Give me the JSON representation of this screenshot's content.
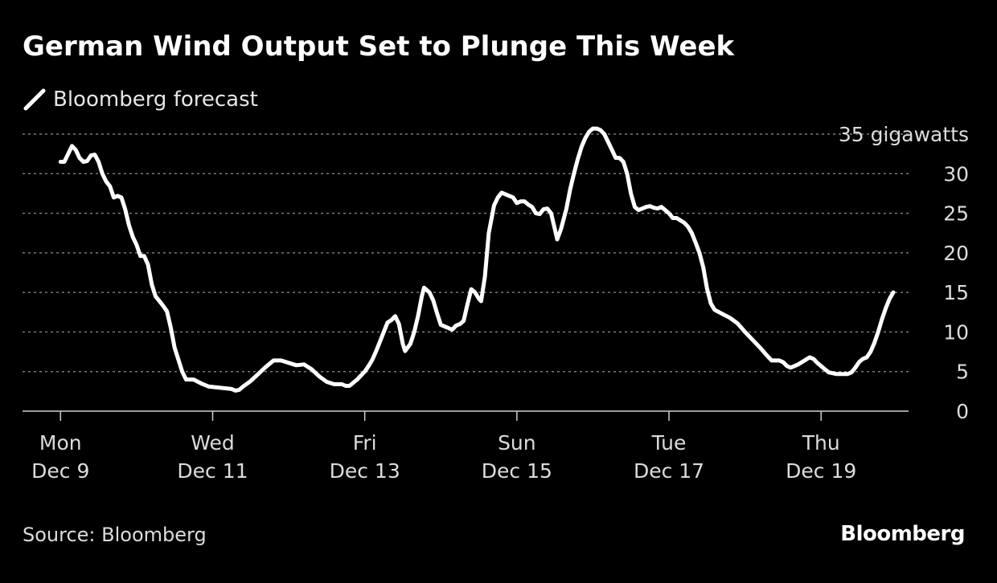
{
  "chart_data": {
    "type": "line",
    "title": "German Wind Output Set to Plunge This Week",
    "legend": [
      "Bloomberg forecast"
    ],
    "ylabel": "gigawatts",
    "ylim": [
      0,
      35
    ],
    "yticks": [
      0,
      5,
      10,
      15,
      20,
      25,
      30,
      35
    ],
    "ytick_labels": [
      "0",
      "5",
      "10",
      "15",
      "20",
      "25",
      "30",
      "35 gigawatts"
    ],
    "xlim": [
      -0.5,
      11.15
    ],
    "xticks": [
      {
        "x": 0,
        "day": "Mon",
        "date": "Dec 9"
      },
      {
        "x": 2,
        "day": "Wed",
        "date": "Dec 11"
      },
      {
        "x": 4,
        "day": "Fri",
        "date": "Dec 13"
      },
      {
        "x": 6,
        "day": "Sun",
        "date": "Dec 15"
      },
      {
        "x": 8,
        "day": "Tue",
        "date": "Dec 17"
      },
      {
        "x": 10,
        "day": "Thu",
        "date": "Dec 19"
      }
    ],
    "series": [
      {
        "name": "Bloomberg forecast",
        "color": "#ffffff",
        "points": [
          [
            0.0,
            31.5
          ],
          [
            0.05,
            31.5
          ],
          [
            0.1,
            32.5
          ],
          [
            0.15,
            33.5
          ],
          [
            0.2,
            33.0
          ],
          [
            0.25,
            32.0
          ],
          [
            0.3,
            31.5
          ],
          [
            0.35,
            31.6
          ],
          [
            0.4,
            32.3
          ],
          [
            0.45,
            32.4
          ],
          [
            0.5,
            31.5
          ],
          [
            0.55,
            30.0
          ],
          [
            0.6,
            29.0
          ],
          [
            0.65,
            28.4
          ],
          [
            0.7,
            27.0
          ],
          [
            0.75,
            27.2
          ],
          [
            0.8,
            27.0
          ],
          [
            0.85,
            25.5
          ],
          [
            0.9,
            23.5
          ],
          [
            0.95,
            22.0
          ],
          [
            1.0,
            21.0
          ],
          [
            1.05,
            19.6
          ],
          [
            1.1,
            19.6
          ],
          [
            1.15,
            18.5
          ],
          [
            1.2,
            16.0
          ],
          [
            1.25,
            14.5
          ],
          [
            1.3,
            13.9
          ],
          [
            1.35,
            13.3
          ],
          [
            1.4,
            12.6
          ],
          [
            1.45,
            10.5
          ],
          [
            1.5,
            8.0
          ],
          [
            1.55,
            6.5
          ],
          [
            1.6,
            5.0
          ],
          [
            1.65,
            4.0
          ],
          [
            1.75,
            4.0
          ],
          [
            1.85,
            3.5
          ],
          [
            1.95,
            3.1
          ],
          [
            2.05,
            3.0
          ],
          [
            2.15,
            2.9
          ],
          [
            2.25,
            2.8
          ],
          [
            2.3,
            2.6
          ],
          [
            2.35,
            2.7
          ],
          [
            2.4,
            3.1
          ],
          [
            2.5,
            3.8
          ],
          [
            2.6,
            4.7
          ],
          [
            2.7,
            5.6
          ],
          [
            2.8,
            6.4
          ],
          [
            2.9,
            6.4
          ],
          [
            3.0,
            6.1
          ],
          [
            3.1,
            5.8
          ],
          [
            3.2,
            5.9
          ],
          [
            3.3,
            5.3
          ],
          [
            3.4,
            4.4
          ],
          [
            3.5,
            3.7
          ],
          [
            3.6,
            3.4
          ],
          [
            3.7,
            3.4
          ],
          [
            3.75,
            3.2
          ],
          [
            3.8,
            3.2
          ],
          [
            3.85,
            3.6
          ],
          [
            3.9,
            4.0
          ],
          [
            4.0,
            5.0
          ],
          [
            4.05,
            5.7
          ],
          [
            4.1,
            6.5
          ],
          [
            4.15,
            7.6
          ],
          [
            4.2,
            8.8
          ],
          [
            4.25,
            10.0
          ],
          [
            4.3,
            11.2
          ],
          [
            4.35,
            11.5
          ],
          [
            4.4,
            12.0
          ],
          [
            4.45,
            11.0
          ],
          [
            4.5,
            8.5
          ],
          [
            4.53,
            7.6
          ],
          [
            4.6,
            8.5
          ],
          [
            4.65,
            10.0
          ],
          [
            4.7,
            12.0
          ],
          [
            4.75,
            14.5
          ],
          [
            4.78,
            15.6
          ],
          [
            4.85,
            15.0
          ],
          [
            4.9,
            14.0
          ],
          [
            4.95,
            12.4
          ],
          [
            5.0,
            10.9
          ],
          [
            5.05,
            10.7
          ],
          [
            5.1,
            10.5
          ],
          [
            5.15,
            10.3
          ],
          [
            5.2,
            10.8
          ],
          [
            5.25,
            11.0
          ],
          [
            5.3,
            11.4
          ],
          [
            5.35,
            13.5
          ],
          [
            5.4,
            15.4
          ],
          [
            5.45,
            15.0
          ],
          [
            5.5,
            14.2
          ],
          [
            5.53,
            13.9
          ],
          [
            5.58,
            17.0
          ],
          [
            5.63,
            22.5
          ],
          [
            5.7,
            26.0
          ],
          [
            5.75,
            27.0
          ],
          [
            5.8,
            27.6
          ],
          [
            5.85,
            27.4
          ],
          [
            5.9,
            27.2
          ],
          [
            5.95,
            27.0
          ],
          [
            6.0,
            26.3
          ],
          [
            6.05,
            26.5
          ],
          [
            6.1,
            26.5
          ],
          [
            6.15,
            26.1
          ],
          [
            6.2,
            25.8
          ],
          [
            6.25,
            25.0
          ],
          [
            6.3,
            24.9
          ],
          [
            6.35,
            25.5
          ],
          [
            6.4,
            25.6
          ],
          [
            6.45,
            25.0
          ],
          [
            6.5,
            23.0
          ],
          [
            6.53,
            21.7
          ],
          [
            6.58,
            23.0
          ],
          [
            6.65,
            25.5
          ],
          [
            6.7,
            28.0
          ],
          [
            6.75,
            30.0
          ],
          [
            6.8,
            31.8
          ],
          [
            6.85,
            33.4
          ],
          [
            6.9,
            34.5
          ],
          [
            6.95,
            35.3
          ],
          [
            7.0,
            35.7
          ],
          [
            7.05,
            35.7
          ],
          [
            7.1,
            35.5
          ],
          [
            7.15,
            35.0
          ],
          [
            7.2,
            34.0
          ],
          [
            7.25,
            33.0
          ],
          [
            7.3,
            32.0
          ],
          [
            7.35,
            32.0
          ],
          [
            7.4,
            31.5
          ],
          [
            7.45,
            30.0
          ],
          [
            7.5,
            27.5
          ],
          [
            7.55,
            25.8
          ],
          [
            7.6,
            25.4
          ],
          [
            7.65,
            25.6
          ],
          [
            7.7,
            25.8
          ],
          [
            7.75,
            25.9
          ],
          [
            7.8,
            25.7
          ],
          [
            7.85,
            25.6
          ],
          [
            7.9,
            25.8
          ],
          [
            7.95,
            25.4
          ],
          [
            8.0,
            25.0
          ],
          [
            8.05,
            24.4
          ],
          [
            8.1,
            24.4
          ],
          [
            8.15,
            24.1
          ],
          [
            8.2,
            23.8
          ],
          [
            8.25,
            23.3
          ],
          [
            8.3,
            22.5
          ],
          [
            8.35,
            21.3
          ],
          [
            8.4,
            20.0
          ],
          [
            8.45,
            18.2
          ],
          [
            8.5,
            15.5
          ],
          [
            8.55,
            13.6
          ],
          [
            8.6,
            12.8
          ],
          [
            8.7,
            12.3
          ],
          [
            8.8,
            11.8
          ],
          [
            8.9,
            11.1
          ],
          [
            9.0,
            10.0
          ],
          [
            9.1,
            9.0
          ],
          [
            9.2,
            8.0
          ],
          [
            9.3,
            6.9
          ],
          [
            9.35,
            6.4
          ],
          [
            9.45,
            6.4
          ],
          [
            9.5,
            6.2
          ],
          [
            9.55,
            5.7
          ],
          [
            9.6,
            5.5
          ],
          [
            9.7,
            5.9
          ],
          [
            9.8,
            6.5
          ],
          [
            9.85,
            6.8
          ],
          [
            9.9,
            6.6
          ],
          [
            9.95,
            6.1
          ],
          [
            10.0,
            5.7
          ],
          [
            10.05,
            5.3
          ],
          [
            10.1,
            4.9
          ],
          [
            10.2,
            4.7
          ],
          [
            10.3,
            4.7
          ],
          [
            10.35,
            4.7
          ],
          [
            10.4,
            4.9
          ],
          [
            10.45,
            5.5
          ],
          [
            10.5,
            6.2
          ],
          [
            10.55,
            6.6
          ],
          [
            10.6,
            6.8
          ],
          [
            10.65,
            7.5
          ],
          [
            10.7,
            8.6
          ],
          [
            10.75,
            10.0
          ],
          [
            10.8,
            11.6
          ],
          [
            10.85,
            13.0
          ],
          [
            10.9,
            14.2
          ],
          [
            10.95,
            15.0
          ]
        ]
      }
    ]
  },
  "footer": {
    "source": "Source: Bloomberg",
    "brand": "Bloomberg"
  },
  "colors": {
    "background": "#000000",
    "line": "#ffffff",
    "grid": "#7a7a7a",
    "text": "#dcdcdc"
  }
}
